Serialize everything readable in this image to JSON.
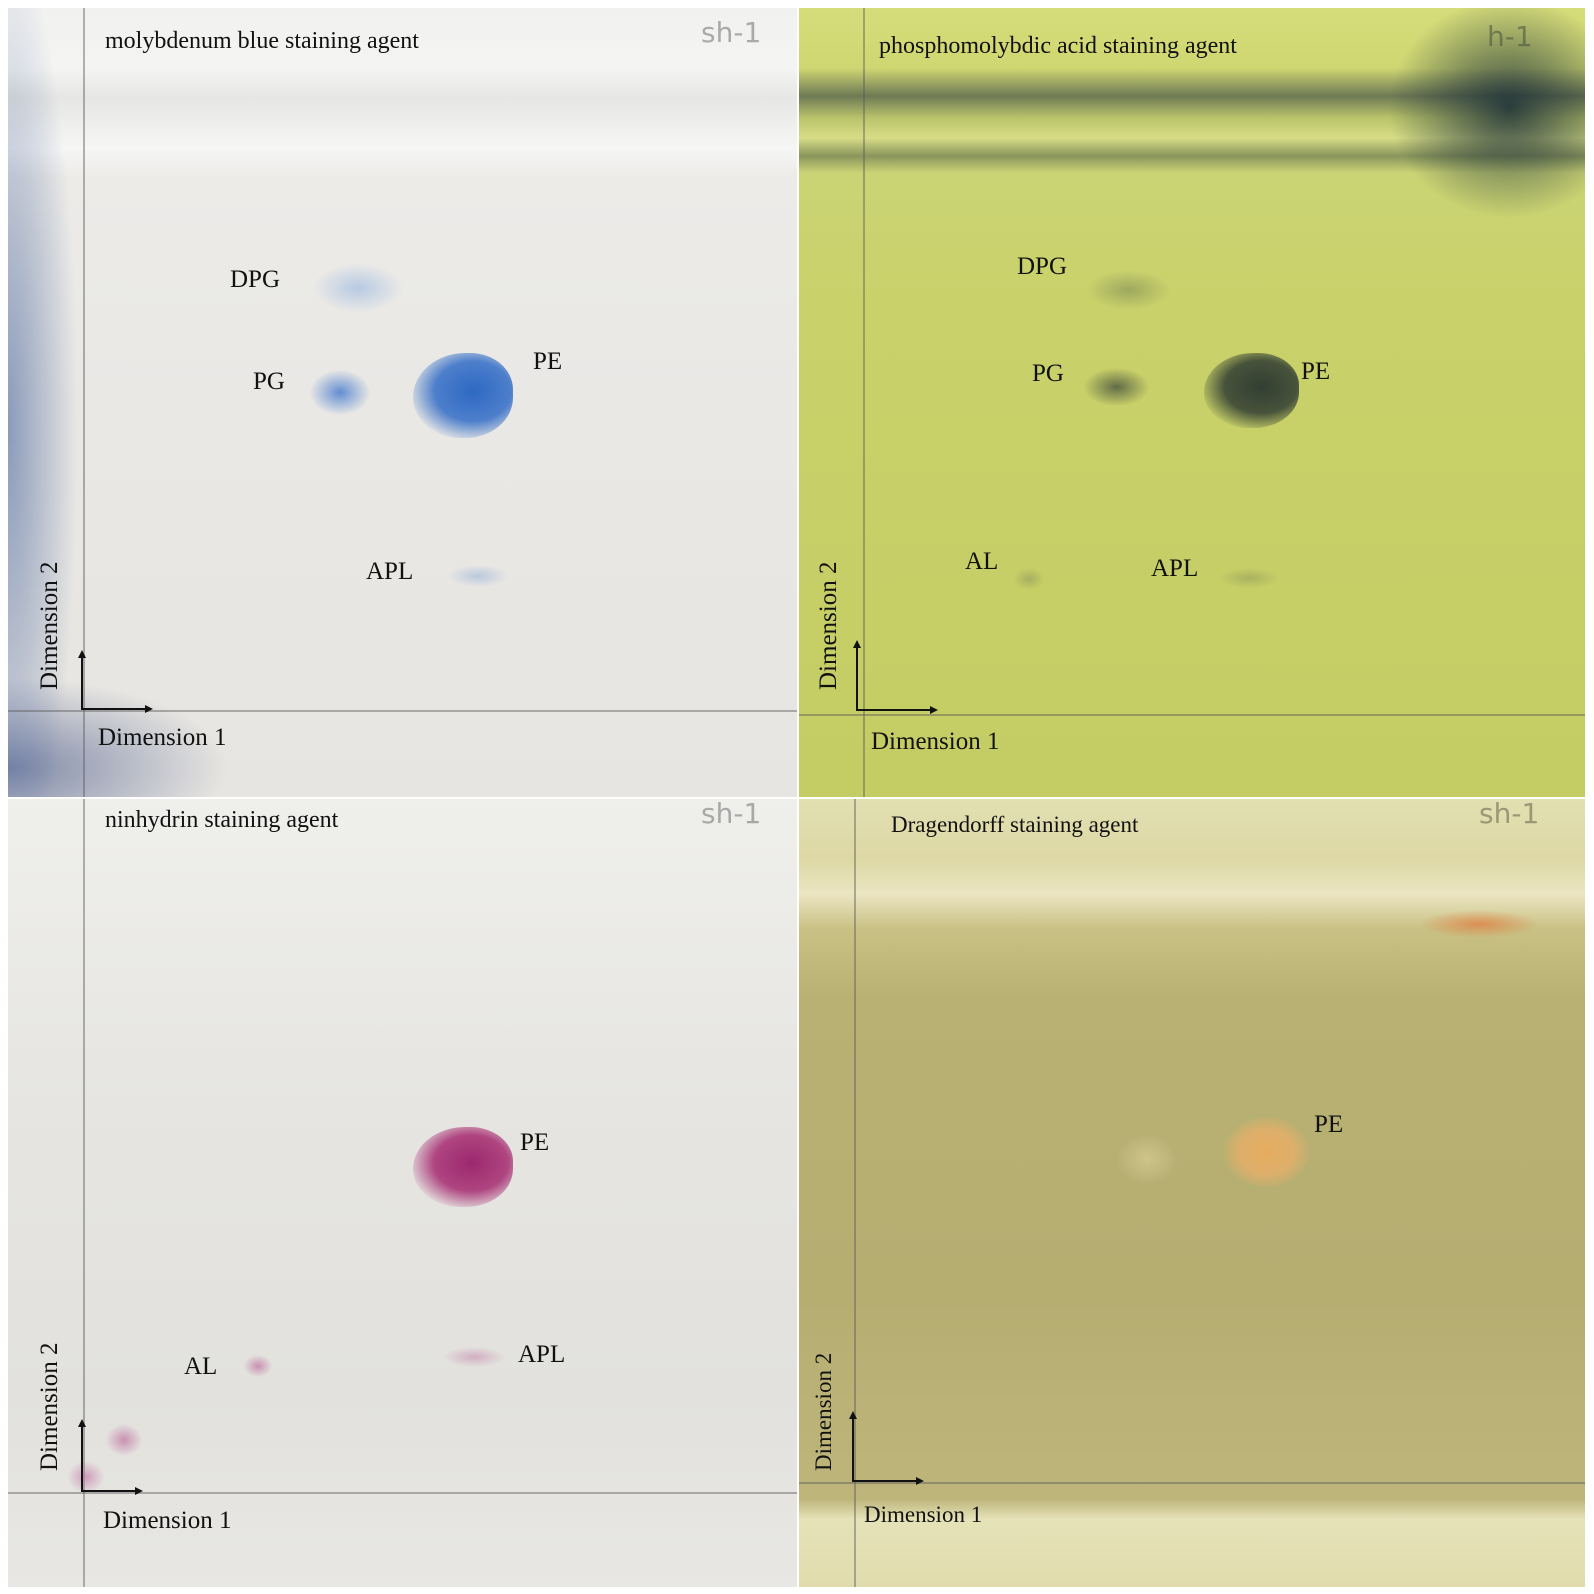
{
  "panels": [
    {
      "title": "molybdenum blue staining agent",
      "mark": "sh-1",
      "spots": [
        {
          "label": "DPG"
        },
        {
          "label": "PG"
        },
        {
          "label": "PE"
        },
        {
          "label": "APL"
        }
      ],
      "y_axis": "Dimension 2",
      "x_axis": "Dimension 1",
      "color": "#3f78c4"
    },
    {
      "title": "phosphomolybdic acid staining agent",
      "mark": "h-1",
      "spots": [
        {
          "label": "DPG"
        },
        {
          "label": "PG"
        },
        {
          "label": "PE"
        },
        {
          "label": "AL"
        },
        {
          "label": "APL"
        }
      ],
      "y_axis": "Dimension 2",
      "x_axis": "Dimension 1",
      "color": "#3f4a3a"
    },
    {
      "title": "ninhydrin staining agent",
      "mark": "sh-1",
      "spots": [
        {
          "label": "PE"
        },
        {
          "label": "AL"
        },
        {
          "label": "APL"
        }
      ],
      "y_axis": "Dimension 2",
      "x_axis": "Dimension 1",
      "color": "#b03a7a"
    },
    {
      "title": "Dragendorff staining agent",
      "mark": "sh-1",
      "spots": [
        {
          "label": "PE"
        }
      ],
      "y_axis": "Dimension 2",
      "x_axis": "Dimension 1",
      "color": "#e39a4a"
    }
  ]
}
